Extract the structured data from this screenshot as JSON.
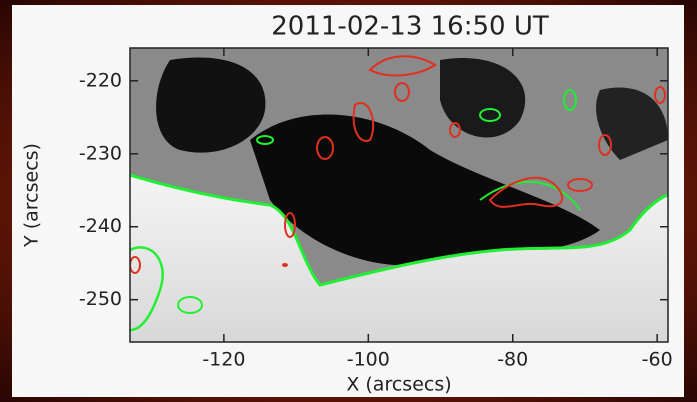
{
  "chart_data": {
    "type": "image",
    "title": "2011-02-13 16:50 UT",
    "xlabel": "X (arcsecs)",
    "ylabel": "Y (arcsecs)",
    "xlim": [
      -133,
      -58.5
    ],
    "ylim": [
      -255.8,
      -215.5
    ],
    "xticks": [
      -120,
      -100,
      -80,
      -60
    ],
    "yticks": [
      -250,
      -240,
      -230,
      -220
    ]
  }
}
